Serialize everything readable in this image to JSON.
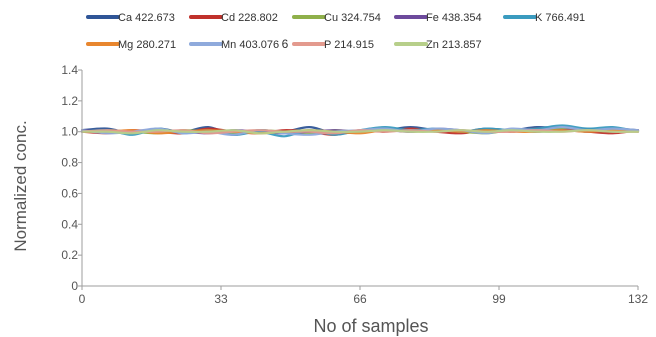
{
  "chart_data": {
    "type": "line",
    "xlabel": "No of samples",
    "ylabel": "Normalized conc.",
    "xlim": [
      0,
      132
    ],
    "ylim": [
      0,
      1.4
    ],
    "x_ticks": [
      "0",
      "33",
      "66",
      "99",
      "132"
    ],
    "y_ticks": [
      {
        "label": "0",
        "value": 0
      },
      {
        "label": "0.2",
        "value": 0.2
      },
      {
        "label": "0.4",
        "value": 0.4
      },
      {
        "label": "0.6",
        "value": 0.6
      },
      {
        "label": "0.8",
        "value": 0.8
      },
      {
        "label": "1.0",
        "value": 1.0
      },
      {
        "label": "1.2",
        "value": 1.2
      },
      {
        "label": "1.4",
        "value": 1.4
      }
    ],
    "legend_position": "top",
    "stray_text": "6",
    "x": [
      0,
      6,
      12,
      18,
      24,
      30,
      36,
      42,
      48,
      54,
      60,
      66,
      72,
      78,
      84,
      90,
      96,
      102,
      108,
      114,
      120,
      126,
      132
    ],
    "series": [
      {
        "name": "Ca 422.673",
        "color": "#2f5597",
        "values": [
          1.01,
          1.02,
          0.99,
          1.02,
          1.0,
          1.03,
          0.98,
          1.01,
          1.0,
          1.03,
          0.99,
          1.0,
          1.01,
          1.03,
          1.01,
          1.0,
          1.02,
          1.01,
          1.03,
          1.02,
          1.0,
          1.02,
          1.01
        ]
      },
      {
        "name": "Cd 228.802",
        "color": "#c0312b",
        "values": [
          1.0,
          0.99,
          1.01,
          1.0,
          0.99,
          1.02,
          1.0,
          0.99,
          1.01,
          1.0,
          0.98,
          1.01,
          1.0,
          1.02,
          1.0,
          0.99,
          1.01,
          1.0,
          1.02,
          1.01,
          1.0,
          0.99,
          1.01
        ]
      },
      {
        "name": "Cu 324.754",
        "color": "#8fb04a",
        "values": [
          1.0,
          1.01,
          1.0,
          0.99,
          1.01,
          1.0,
          0.99,
          1.01,
          1.0,
          0.99,
          1.01,
          1.0,
          1.02,
          1.0,
          1.01,
          1.0,
          0.99,
          1.01,
          1.0,
          1.02,
          1.01,
          1.0,
          1.01
        ]
      },
      {
        "name": "Fe 438.354",
        "color": "#6d4a9c",
        "values": [
          1.01,
          1.0,
          0.99,
          1.01,
          1.0,
          0.99,
          1.01,
          1.0,
          0.99,
          1.0,
          1.01,
          1.0,
          1.01,
          1.0,
          1.02,
          1.01,
          1.0,
          1.01,
          1.0,
          1.01,
          1.02,
          1.0,
          1.01
        ]
      },
      {
        "name": "K 766.491",
        "color": "#3a9bbf",
        "values": [
          1.0,
          1.01,
          0.98,
          1.02,
          0.99,
          1.01,
          0.98,
          1.0,
          0.97,
          1.01,
          0.98,
          1.01,
          1.03,
          1.01,
          1.02,
          1.0,
          1.02,
          1.01,
          1.02,
          1.04,
          1.02,
          1.03,
          1.0
        ]
      },
      {
        "name": "Mg 280.271",
        "color": "#e8862e",
        "values": [
          1.0,
          1.0,
          1.01,
          0.99,
          1.0,
          1.01,
          1.0,
          0.99,
          1.0,
          1.01,
          1.0,
          0.99,
          1.01,
          1.0,
          1.01,
          1.0,
          1.01,
          1.0,
          1.0,
          1.01,
          1.0,
          1.01,
          1.0
        ]
      },
      {
        "name": "Mn 403.076",
        "color": "#8faadc",
        "values": [
          1.01,
          0.99,
          1.0,
          1.02,
          0.99,
          1.0,
          0.98,
          1.01,
          0.99,
          0.98,
          1.0,
          1.01,
          1.02,
          1.0,
          1.02,
          1.01,
          0.99,
          1.02,
          1.01,
          1.03,
          1.01,
          1.02,
          1.01
        ]
      },
      {
        "name": "P 214.915",
        "color": "#e39a8e",
        "values": [
          1.0,
          1.01,
          1.0,
          1.0,
          1.01,
          0.99,
          1.0,
          1.01,
          1.0,
          1.0,
          0.99,
          1.01,
          1.0,
          1.01,
          1.0,
          1.01,
          1.0,
          1.0,
          1.01,
          1.0,
          1.01,
          1.0,
          1.0
        ]
      },
      {
        "name": "Zn 213.857",
        "color": "#b7cf8a",
        "values": [
          1.0,
          1.0,
          0.99,
          1.01,
          1.0,
          1.0,
          1.01,
          0.99,
          1.0,
          1.01,
          1.0,
          1.0,
          1.01,
          1.0,
          1.0,
          1.01,
          1.0,
          1.01,
          1.0,
          1.0,
          1.01,
          1.0,
          1.0
        ]
      }
    ]
  }
}
